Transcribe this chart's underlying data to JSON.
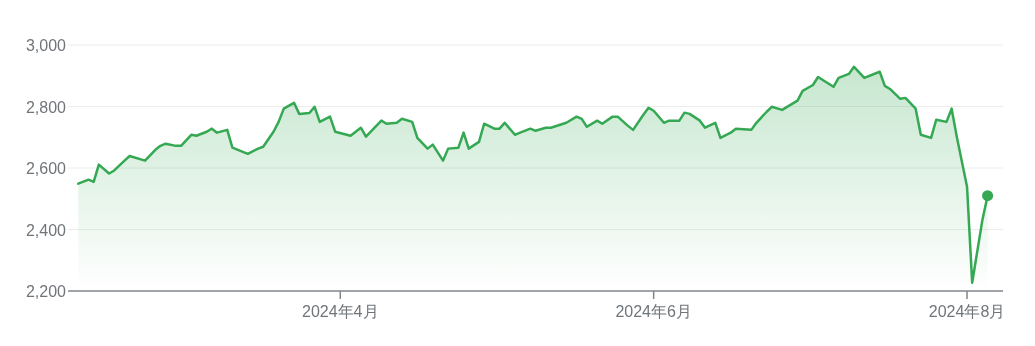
{
  "chart_data": {
    "type": "area",
    "color": "#34a853",
    "grid": "y",
    "xlim": [
      "2024-02-08",
      "2024-08-08"
    ],
    "xticks": [
      {
        "value": "2024-04-01",
        "label": "2024年4月"
      },
      {
        "value": "2024-06-01",
        "label": "2024年6月"
      },
      {
        "value": "2024-08-01",
        "label": "2024年8月"
      }
    ],
    "ylim": [
      2200,
      3000
    ],
    "yticks": [
      {
        "value": 2200,
        "label": "2,200"
      },
      {
        "value": 2400,
        "label": "2,400"
      },
      {
        "value": 2600,
        "label": "2,600"
      },
      {
        "value": 2800,
        "label": "2,800"
      },
      {
        "value": 3000,
        "label": "3,000"
      }
    ],
    "x": [
      "2024-02-10",
      "2024-02-12",
      "2024-02-13",
      "2024-02-14",
      "2024-02-16",
      "2024-02-17",
      "2024-02-19",
      "2024-02-20",
      "2024-02-23",
      "2024-02-25",
      "2024-02-26",
      "2024-02-27",
      "2024-02-29",
      "2024-03-01",
      "2024-03-03",
      "2024-03-04",
      "2024-03-06",
      "2024-03-07",
      "2024-03-08",
      "2024-03-10",
      "2024-03-11",
      "2024-03-14",
      "2024-03-16",
      "2024-03-17",
      "2024-03-19",
      "2024-03-20",
      "2024-03-21",
      "2024-03-23",
      "2024-03-24",
      "2024-03-26",
      "2024-03-27",
      "2024-03-28",
      "2024-03-30",
      "2024-03-31",
      "2024-04-03",
      "2024-04-05",
      "2024-04-06",
      "2024-04-09",
      "2024-04-10",
      "2024-04-12",
      "2024-04-13",
      "2024-04-15",
      "2024-04-16",
      "2024-04-18",
      "2024-04-19",
      "2024-04-21",
      "2024-04-22",
      "2024-04-24",
      "2024-04-25",
      "2024-04-26",
      "2024-04-28",
      "2024-04-29",
      "2024-05-01",
      "2024-05-02",
      "2024-05-03",
      "2024-05-05",
      "2024-05-06",
      "2024-05-08",
      "2024-05-09",
      "2024-05-11",
      "2024-05-12",
      "2024-05-15",
      "2024-05-17",
      "2024-05-18",
      "2024-05-19",
      "2024-05-21",
      "2024-05-22",
      "2024-05-24",
      "2024-05-25",
      "2024-05-27",
      "2024-05-28",
      "2024-05-30",
      "2024-05-31",
      "2024-06-01",
      "2024-06-03",
      "2024-06-04",
      "2024-06-06",
      "2024-06-07",
      "2024-06-08",
      "2024-06-10",
      "2024-06-11",
      "2024-06-13",
      "2024-06-14",
      "2024-06-16",
      "2024-06-17",
      "2024-06-20",
      "2024-06-21",
      "2024-06-23",
      "2024-06-24",
      "2024-06-26",
      "2024-06-29",
      "2024-06-30",
      "2024-07-02",
      "2024-07-03",
      "2024-07-06",
      "2024-07-07",
      "2024-07-09",
      "2024-07-10",
      "2024-07-12",
      "2024-07-15",
      "2024-07-16",
      "2024-07-17",
      "2024-07-19",
      "2024-07-20",
      "2024-07-22",
      "2024-07-23",
      "2024-07-25",
      "2024-07-26",
      "2024-07-28",
      "2024-07-29",
      "2024-07-30",
      "2024-08-01",
      "2024-08-02",
      "2024-08-04",
      "2024-08-05"
    ],
    "values": [
      2549,
      2562,
      2555,
      2611,
      2582,
      2592,
      2624,
      2639,
      2624,
      2659,
      2672,
      2679,
      2672,
      2672,
      2708,
      2705,
      2718,
      2728,
      2715,
      2724,
      2666,
      2646,
      2663,
      2669,
      2718,
      2750,
      2793,
      2812,
      2776,
      2779,
      2799,
      2750,
      2767,
      2718,
      2705,
      2731,
      2702,
      2754,
      2744,
      2747,
      2760,
      2750,
      2698,
      2663,
      2676,
      2624,
      2663,
      2666,
      2715,
      2663,
      2685,
      2744,
      2728,
      2728,
      2747,
      2708,
      2715,
      2728,
      2721,
      2731,
      2731,
      2747,
      2767,
      2760,
      2734,
      2754,
      2744,
      2767,
      2767,
      2737,
      2724,
      2773,
      2796,
      2786,
      2747,
      2754,
      2754,
      2780,
      2776,
      2754,
      2731,
      2747,
      2698,
      2715,
      2728,
      2724,
      2747,
      2783,
      2799,
      2789,
      2819,
      2851,
      2870,
      2896,
      2864,
      2893,
      2906,
      2929,
      2893,
      2913,
      2867,
      2857,
      2825,
      2828,
      2793,
      2708,
      2698,
      2757,
      2750,
      2793,
      2702,
      2539,
      2227,
      2432,
      2510
    ]
  }
}
